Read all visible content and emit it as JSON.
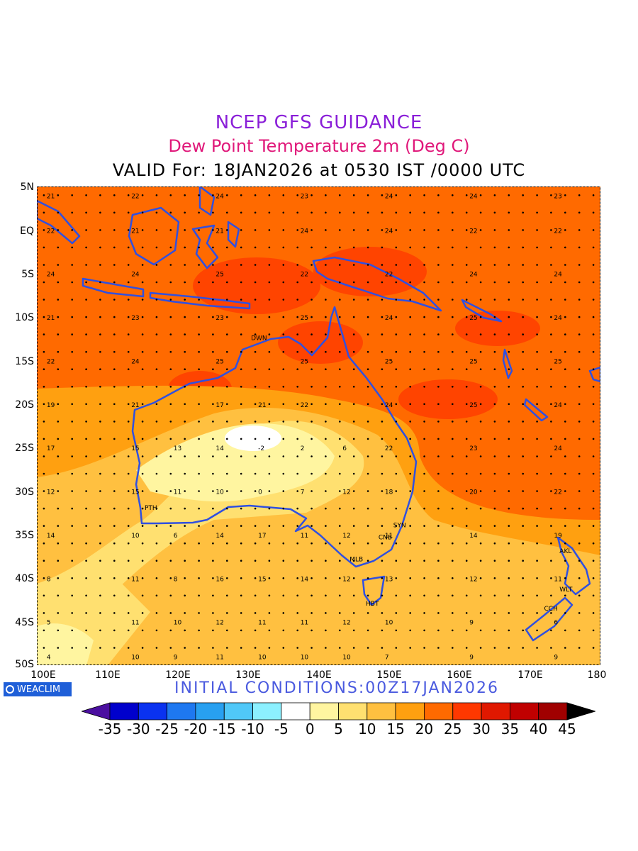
{
  "titles": {
    "line1": "NCEP GFS GUIDANCE",
    "line2": "Dew Point Temperature 2m (Deg C)",
    "line3": "VALID For: 18JAN2026 at 0530 IST /0000 UTC"
  },
  "initial_conditions": "INITIAL CONDITIONS:00Z17JAN2026",
  "logo": "WEACLIM",
  "lat_labels": [
    "5N",
    "EQ",
    "5S",
    "10S",
    "15S",
    "20S",
    "25S",
    "30S",
    "35S",
    "40S",
    "45S",
    "50S"
  ],
  "lon_labels": [
    "100E",
    "110E",
    "120E",
    "130E",
    "140E",
    "150E",
    "160E",
    "170E",
    "180"
  ],
  "map": {
    "region": {
      "lon_min": 100,
      "lon_max": 180,
      "lat_min": -50,
      "lat_max": 5
    },
    "coastline_color": "#3050e0",
    "stations": [
      {
        "name": "DWN",
        "lon": 131,
        "lat": -12.4
      },
      {
        "name": "PTH",
        "lon": 115.9,
        "lat": -31.9
      },
      {
        "name": "SYN",
        "lon": 151.2,
        "lat": -33.9
      },
      {
        "name": "CNB",
        "lon": 149.1,
        "lat": -35.3
      },
      {
        "name": "MLB",
        "lon": 145,
        "lat": -37.8
      },
      {
        "name": "HBT",
        "lon": 147.3,
        "lat": -42.9
      },
      {
        "name": "AKL",
        "lon": 174.8,
        "lat": -36.9
      },
      {
        "name": "WLT",
        "lon": 174.8,
        "lat": -41.3
      },
      {
        "name": "CCH",
        "lon": 172.6,
        "lat": -43.5
      }
    ],
    "sample_values": [
      {
        "lon": 101,
        "lat": 4,
        "v": 21
      },
      {
        "lon": 113,
        "lat": 4,
        "v": 22
      },
      {
        "lon": 125,
        "lat": 4,
        "v": 24
      },
      {
        "lon": 137,
        "lat": 4,
        "v": 23
      },
      {
        "lon": 149,
        "lat": 4,
        "v": 24
      },
      {
        "lon": 161,
        "lat": 4,
        "v": 24
      },
      {
        "lon": 173,
        "lat": 4,
        "v": 23
      },
      {
        "lon": 101,
        "lat": 0,
        "v": 22
      },
      {
        "lon": 113,
        "lat": 0,
        "v": 21
      },
      {
        "lon": 125,
        "lat": 0,
        "v": 21
      },
      {
        "lon": 137,
        "lat": 0,
        "v": 24
      },
      {
        "lon": 149,
        "lat": 0,
        "v": 24
      },
      {
        "lon": 161,
        "lat": 0,
        "v": 22
      },
      {
        "lon": 173,
        "lat": 0,
        "v": 22
      },
      {
        "lon": 101,
        "lat": -5,
        "v": 24
      },
      {
        "lon": 113,
        "lat": -5,
        "v": 24
      },
      {
        "lon": 125,
        "lat": -5,
        "v": 25
      },
      {
        "lon": 137,
        "lat": -5,
        "v": 22
      },
      {
        "lon": 149,
        "lat": -5,
        "v": 22
      },
      {
        "lon": 161,
        "lat": -5,
        "v": 24
      },
      {
        "lon": 173,
        "lat": -5,
        "v": 24
      },
      {
        "lon": 101,
        "lat": -10,
        "v": 21
      },
      {
        "lon": 113,
        "lat": -10,
        "v": 23
      },
      {
        "lon": 125,
        "lat": -10,
        "v": 23
      },
      {
        "lon": 137,
        "lat": -10,
        "v": 25
      },
      {
        "lon": 149,
        "lat": -10,
        "v": 24
      },
      {
        "lon": 161,
        "lat": -10,
        "v": 25
      },
      {
        "lon": 173,
        "lat": -10,
        "v": 24
      },
      {
        "lon": 101,
        "lat": -15,
        "v": 22
      },
      {
        "lon": 113,
        "lat": -15,
        "v": 24
      },
      {
        "lon": 125,
        "lat": -15,
        "v": 25
      },
      {
        "lon": 137,
        "lat": -15,
        "v": 25
      },
      {
        "lon": 149,
        "lat": -15,
        "v": 25
      },
      {
        "lon": 161,
        "lat": -15,
        "v": 25
      },
      {
        "lon": 173,
        "lat": -15,
        "v": 25
      },
      {
        "lon": 101,
        "lat": -20,
        "v": 19
      },
      {
        "lon": 113,
        "lat": -20,
        "v": 21
      },
      {
        "lon": 125,
        "lat": -20,
        "v": 17
      },
      {
        "lon": 131,
        "lat": -20,
        "v": 21
      },
      {
        "lon": 137,
        "lat": -20,
        "v": 22
      },
      {
        "lon": 149,
        "lat": -20,
        "v": 24
      },
      {
        "lon": 161,
        "lat": -20,
        "v": 25
      },
      {
        "lon": 173,
        "lat": -20,
        "v": 24
      },
      {
        "lon": 101,
        "lat": -25,
        "v": 17
      },
      {
        "lon": 113,
        "lat": -25,
        "v": 15
      },
      {
        "lon": 119,
        "lat": -25,
        "v": 13
      },
      {
        "lon": 125,
        "lat": -25,
        "v": 14
      },
      {
        "lon": 131,
        "lat": -25,
        "v": -2
      },
      {
        "lon": 137,
        "lat": -25,
        "v": 2
      },
      {
        "lon": 143,
        "lat": -25,
        "v": 6
      },
      {
        "lon": 149,
        "lat": -25,
        "v": 22
      },
      {
        "lon": 161,
        "lat": -25,
        "v": 23
      },
      {
        "lon": 173,
        "lat": -25,
        "v": 24
      },
      {
        "lon": 101,
        "lat": -30,
        "v": 12
      },
      {
        "lon": 113,
        "lat": -30,
        "v": 15
      },
      {
        "lon": 119,
        "lat": -30,
        "v": 11
      },
      {
        "lon": 125,
        "lat": -30,
        "v": 10
      },
      {
        "lon": 131,
        "lat": -30,
        "v": 0
      },
      {
        "lon": 137,
        "lat": -30,
        "v": 7
      },
      {
        "lon": 143,
        "lat": -30,
        "v": 12
      },
      {
        "lon": 149,
        "lat": -30,
        "v": 18
      },
      {
        "lon": 161,
        "lat": -30,
        "v": 20
      },
      {
        "lon": 173,
        "lat": -30,
        "v": 22
      },
      {
        "lon": 101,
        "lat": -35,
        "v": 14
      },
      {
        "lon": 113,
        "lat": -35,
        "v": 10
      },
      {
        "lon": 119,
        "lat": -35,
        "v": 6
      },
      {
        "lon": 125,
        "lat": -35,
        "v": 14
      },
      {
        "lon": 131,
        "lat": -35,
        "v": 17
      },
      {
        "lon": 137,
        "lat": -35,
        "v": 11
      },
      {
        "lon": 143,
        "lat": -35,
        "v": 12
      },
      {
        "lon": 149,
        "lat": -35,
        "v": 11
      },
      {
        "lon": 161,
        "lat": -35,
        "v": 14
      },
      {
        "lon": 173,
        "lat": -35,
        "v": 19
      },
      {
        "lon": 101,
        "lat": -40,
        "v": 8
      },
      {
        "lon": 113,
        "lat": -40,
        "v": 11
      },
      {
        "lon": 119,
        "lat": -40,
        "v": 8
      },
      {
        "lon": 125,
        "lat": -40,
        "v": 16
      },
      {
        "lon": 131,
        "lat": -40,
        "v": 15
      },
      {
        "lon": 137,
        "lat": -40,
        "v": 14
      },
      {
        "lon": 143,
        "lat": -40,
        "v": 12
      },
      {
        "lon": 149,
        "lat": -40,
        "v": 13
      },
      {
        "lon": 161,
        "lat": -40,
        "v": 12
      },
      {
        "lon": 173,
        "lat": -40,
        "v": 11
      },
      {
        "lon": 101,
        "lat": -45,
        "v": 5
      },
      {
        "lon": 113,
        "lat": -45,
        "v": 11
      },
      {
        "lon": 119,
        "lat": -45,
        "v": 10
      },
      {
        "lon": 125,
        "lat": -45,
        "v": 12
      },
      {
        "lon": 131,
        "lat": -45,
        "v": 11
      },
      {
        "lon": 137,
        "lat": -45,
        "v": 11
      },
      {
        "lon": 143,
        "lat": -45,
        "v": 12
      },
      {
        "lon": 149,
        "lat": -45,
        "v": 10
      },
      {
        "lon": 161,
        "lat": -45,
        "v": 9
      },
      {
        "lon": 173,
        "lat": -45,
        "v": 6
      },
      {
        "lon": 101,
        "lat": -49,
        "v": 4
      },
      {
        "lon": 113,
        "lat": -49,
        "v": 10
      },
      {
        "lon": 119,
        "lat": -49,
        "v": 9
      },
      {
        "lon": 125,
        "lat": -49,
        "v": 11
      },
      {
        "lon": 131,
        "lat": -49,
        "v": 10
      },
      {
        "lon": 137,
        "lat": -49,
        "v": 10
      },
      {
        "lon": 143,
        "lat": -49,
        "v": 10
      },
      {
        "lon": 149,
        "lat": -49,
        "v": 7
      },
      {
        "lon": 161,
        "lat": -49,
        "v": 9
      },
      {
        "lon": 173,
        "lat": -49,
        "v": 9
      }
    ]
  },
  "colorbar": {
    "labels": [
      "-35",
      "-30",
      "-25",
      "-20",
      "-15",
      "-10",
      "-5",
      "0",
      "5",
      "10",
      "15",
      "20",
      "25",
      "30",
      "35",
      "40",
      "45"
    ],
    "colors": [
      "#4b0fa0",
      "#0000cc",
      "#0a32f0",
      "#1e78f0",
      "#28a0f0",
      "#50c8f8",
      "#8cf0ff",
      "#ffffff",
      "#fff5a0",
      "#ffe070",
      "#ffc040",
      "#ffa010",
      "#ff6a00",
      "#ff3800",
      "#e01800",
      "#c00000",
      "#a00000",
      "#000000"
    ]
  }
}
